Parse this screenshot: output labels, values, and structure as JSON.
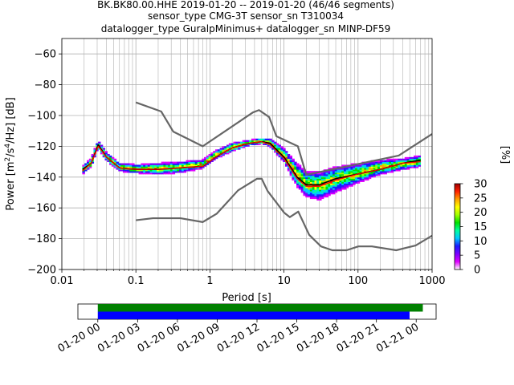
{
  "title": {
    "line1": "BK.BK80.00.HHE   2019-01-20 -- 2019-01-20  (46/46 segments)",
    "line2": "sensor_type CMG-3T sensor_sn T310034",
    "line3": "datalogger_type GuralpMinimus+ datalogger_sn MINP-DF59"
  },
  "chart_data": [
    {
      "type": "heatmap",
      "title": "",
      "xlabel": "Period [s]",
      "ylabel": "Power [m²/s⁴/Hz] [dB]",
      "x_scale": "log",
      "xlim": [
        0.01,
        1000
      ],
      "ylim": [
        -200,
        -50
      ],
      "x_ticks": [
        0.01,
        0.1,
        1,
        10,
        100,
        1000
      ],
      "x_tick_labels": [
        "0.01",
        "0.1",
        "1",
        "10",
        "100",
        "1000"
      ],
      "y_ticks": [
        -200,
        -180,
        -160,
        -140,
        -120,
        -100,
        -80,
        -60
      ],
      "y_tick_labels": [
        "−200",
        "−180",
        "−160",
        "−140",
        "−120",
        "−100",
        "−80",
        "−60"
      ],
      "grid": true,
      "colorbar": {
        "label": "[%]",
        "range": [
          0,
          30
        ],
        "ticks": [
          0,
          5,
          10,
          15,
          20,
          25,
          30
        ],
        "colormap": [
          "#ffffff",
          "#e000ff",
          "#7a00ff",
          "#1a1aff",
          "#00c8ff",
          "#00ffa0",
          "#00e000",
          "#a0ff00",
          "#ffff00",
          "#ffa000",
          "#ff2000",
          "#a00000"
        ]
      },
      "series": [
        {
          "role": "density-band",
          "period_range": [
            0.019,
            700
          ],
          "center": [
            [
              0.019,
              -136
            ],
            [
              0.025,
              -131
            ],
            [
              0.031,
              -119
            ],
            [
              0.04,
              -127
            ],
            [
              0.06,
              -134
            ],
            [
              0.1,
              -135
            ],
            [
              0.2,
              -135
            ],
            [
              0.4,
              -134
            ],
            [
              0.8,
              -132
            ],
            [
              1.2,
              -126
            ],
            [
              2,
              -121
            ],
            [
              3.5,
              -118
            ],
            [
              5,
              -117
            ],
            [
              6.5,
              -118
            ],
            [
              10,
              -126
            ],
            [
              15,
              -139
            ],
            [
              20,
              -145
            ],
            [
              30,
              -146
            ],
            [
              50,
              -142
            ],
            [
              100,
              -138
            ],
            [
              200,
              -134
            ],
            [
              400,
              -132
            ],
            [
              700,
              -130
            ]
          ],
          "half_width_db": [
            3,
            3,
            3,
            3,
            3,
            3,
            4,
            4,
            3,
            3,
            3,
            2,
            2,
            3,
            5,
            8,
            9,
            10,
            9,
            7,
            5,
            4,
            4
          ]
        },
        {
          "role": "mean",
          "color": "#000000",
          "points": [
            [
              0.019,
              -135
            ],
            [
              0.025,
              -131
            ],
            [
              0.031,
              -119
            ],
            [
              0.04,
              -127
            ],
            [
              0.06,
              -134
            ],
            [
              0.1,
              -135
            ],
            [
              0.2,
              -135
            ],
            [
              0.4,
              -134
            ],
            [
              0.8,
              -133
            ],
            [
              1.2,
              -127
            ],
            [
              2,
              -121
            ],
            [
              3.5,
              -118
            ],
            [
              5,
              -117
            ],
            [
              6.5,
              -118
            ],
            [
              10,
              -127
            ],
            [
              15,
              -140
            ],
            [
              20,
              -145
            ],
            [
              30,
              -145
            ],
            [
              50,
              -141
            ],
            [
              100,
              -138
            ],
            [
              200,
              -135
            ],
            [
              400,
              -131
            ],
            [
              700,
              -129
            ]
          ]
        },
        {
          "role": "mode",
          "color": "#ff0000",
          "points": [
            [
              0.019,
              -136
            ],
            [
              0.025,
              -131
            ],
            [
              0.031,
              -120
            ],
            [
              0.04,
              -127
            ],
            [
              0.06,
              -134
            ],
            [
              0.1,
              -135
            ],
            [
              0.2,
              -135
            ],
            [
              0.4,
              -134
            ],
            [
              0.8,
              -133
            ],
            [
              1.2,
              -127
            ],
            [
              2,
              -121
            ],
            [
              3.5,
              -118
            ],
            [
              5,
              -117
            ],
            [
              6.5,
              -119
            ],
            [
              10,
              -128
            ],
            [
              15,
              -141
            ],
            [
              20,
              -146
            ],
            [
              30,
              -146
            ],
            [
              50,
              -142
            ],
            [
              100,
              -138
            ],
            [
              200,
              -135
            ],
            [
              400,
              -131
            ],
            [
              700,
              -130
            ]
          ]
        },
        {
          "role": "new-high-noise-model",
          "color": "#666666",
          "points": [
            [
              0.1,
              -91.5
            ],
            [
              0.22,
              -97.4
            ],
            [
              0.32,
              -110.5
            ],
            [
              0.8,
              -120
            ],
            [
              3.8,
              -98
            ],
            [
              4.6,
              -96.5
            ],
            [
              6.3,
              -101
            ],
            [
              7.9,
              -113.5
            ],
            [
              15.4,
              -120
            ],
            [
              20,
              -138.5
            ],
            [
              354.8,
              -126
            ],
            [
              1000,
              -112
            ]
          ]
        },
        {
          "role": "new-low-noise-model",
          "color": "#666666",
          "points": [
            [
              0.1,
              -168
            ],
            [
              0.17,
              -166.7
            ],
            [
              0.4,
              -166.7
            ],
            [
              0.8,
              -169.2
            ],
            [
              1.24,
              -163.7
            ],
            [
              2.4,
              -148.6
            ],
            [
              4.3,
              -141.1
            ],
            [
              5,
              -141.1
            ],
            [
              6,
              -149
            ],
            [
              10,
              -163
            ],
            [
              12,
              -166
            ],
            [
              15.6,
              -162.4
            ],
            [
              21.9,
              -177.5
            ],
            [
              31.6,
              -185
            ],
            [
              45,
              -187.5
            ],
            [
              70,
              -187.5
            ],
            [
              101,
              -185
            ],
            [
              154,
              -185
            ],
            [
              328,
              -187.5
            ],
            [
              600,
              -184.4
            ],
            [
              1000,
              -178
            ]
          ]
        }
      ]
    },
    {
      "type": "bar",
      "title": "",
      "orientation": "horizontal",
      "x_type": "time",
      "xlim": [
        "2019-01-19 22:30",
        "2019-01-21 01:30"
      ],
      "x_ticks": [
        "2019-01-20 00:00",
        "2019-01-20 03:00",
        "2019-01-20 06:00",
        "2019-01-20 09:00",
        "2019-01-20 12:00",
        "2019-01-20 15:00",
        "2019-01-20 18:00",
        "2019-01-20 21:00",
        "2019-01-21 00:00"
      ],
      "x_tick_labels": [
        "01-20 00",
        "01-20 03",
        "01-20 06",
        "01-20 09",
        "01-20 12",
        "01-20 15",
        "01-20 18",
        "01-20 21",
        "01-21 00"
      ],
      "series": [
        {
          "name": "",
          "color": "#008000",
          "start": "2019-01-20 00:00",
          "end": "2019-01-21 00:30"
        },
        {
          "name": "",
          "color": "#0000ff",
          "start": "2019-01-20 00:00",
          "end": "2019-01-20 23:30"
        }
      ]
    }
  ]
}
